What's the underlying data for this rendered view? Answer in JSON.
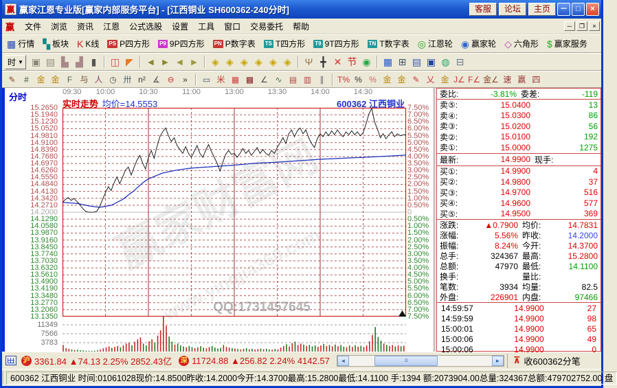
{
  "window": {
    "title": "赢家江恩专业版[赢家内部服务平台] - [江西铜业  SH600362-240分时]",
    "buttons": [
      "客服",
      "论坛",
      "主页"
    ],
    "controls": [
      "－",
      "□",
      "×"
    ],
    "logo": "赢"
  },
  "menu": {
    "logo": "赢",
    "items": [
      "文件",
      "浏览",
      "资讯",
      "江恩",
      "公式选股",
      "设置",
      "工具",
      "窗口",
      "交易委托",
      "帮助"
    ],
    "mdi_controls": [
      "─",
      "❐",
      "×"
    ]
  },
  "toolbar_main": [
    {
      "name": "quotes-button",
      "label": "行情",
      "glyph": "▦",
      "color": "#2244bb"
    },
    {
      "name": "sectors-button",
      "label": "板块",
      "glyph": "▚",
      "color": "#118888"
    },
    {
      "name": "kline-button",
      "label": "K线",
      "glyph": "K",
      "color": "#cc2222"
    },
    {
      "name": "p-square-button",
      "label": "P四方形",
      "badge": "PS",
      "badgecolor": "#cc3333"
    },
    {
      "name": "ninep-square-button",
      "label": "9P四方形",
      "badge": "P9",
      "badgecolor": "#cc33cc"
    },
    {
      "name": "p-table-button",
      "label": "P数字表",
      "badge": "PN",
      "badgecolor": "#cc3333"
    },
    {
      "name": "t-square-button",
      "label": "T四方形",
      "badge": "TS",
      "badgecolor": "#229999"
    },
    {
      "name": "ninet-square-button",
      "label": "9T四方形",
      "badge": "T9",
      "badgecolor": "#229999"
    },
    {
      "name": "t-table-button",
      "label": "T数字表",
      "badge": "TN",
      "badgecolor": "#229999"
    },
    {
      "name": "gann-wheel-button",
      "label": "江恩轮",
      "glyph": "◎",
      "color": "#22aa22"
    },
    {
      "name": "winner-wheel-button",
      "label": "赢家轮",
      "glyph": "◉",
      "color": "#3366cc"
    },
    {
      "name": "hexagon-button",
      "label": "六角形",
      "glyph": "◇",
      "color": "#aa44aa"
    },
    {
      "name": "winner-service-button",
      "label": "赢家服务",
      "glyph": "$",
      "color": "#22aa22"
    }
  ],
  "toolbar_tools": {
    "period_label": "时",
    "icons": [
      {
        "name": "capture-icon",
        "glyph": "▣",
        "color": "#8a8878"
      },
      {
        "name": "memo-icon",
        "glyph": "▤",
        "color": "#8a8878"
      },
      {
        "name": "stats-up-icon",
        "glyph": "▙",
        "color": "#aa8888"
      },
      {
        "name": "stats-down-icon",
        "glyph": "▟",
        "color": "#aa8888"
      },
      {
        "name": "candle-period-icon",
        "glyph": "▮",
        "color": "#555555"
      },
      {
        "name": "sep1",
        "sep": true
      },
      {
        "name": "ruler-window-icon",
        "glyph": "◫",
        "color": "#cc4444"
      },
      {
        "name": "flag-icon",
        "glyph": "◤",
        "color": "#ee7722"
      },
      {
        "name": "sep2",
        "sep": true
      },
      {
        "name": "goto-first-icon",
        "glyph": "◄",
        "color": "#888833"
      },
      {
        "name": "goto-last-icon",
        "glyph": "►",
        "color": "#888833"
      },
      {
        "name": "page-prev-icon",
        "glyph": "◄",
        "color": "#999944"
      },
      {
        "name": "page-next-icon",
        "glyph": "►",
        "color": "#999944"
      },
      {
        "name": "sep3",
        "sep": true
      },
      {
        "name": "gann-box-icon",
        "glyph": "◈",
        "color": "#c8a400"
      },
      {
        "name": "gann-fan-icon",
        "glyph": "◈",
        "color": "#c8a400"
      },
      {
        "name": "gann-grid-icon",
        "glyph": "◈",
        "color": "#c8a400"
      },
      {
        "name": "gann-angles-icon",
        "glyph": "◈",
        "color": "#c8a400"
      },
      {
        "name": "gann-cycle-icon",
        "glyph": "◈",
        "color": "#c8a400"
      },
      {
        "name": "gann-square-icon",
        "glyph": "◈",
        "color": "#c8a400"
      },
      {
        "name": "sep4",
        "sep": true
      },
      {
        "name": "hand-tool-icon",
        "glyph": "Ψ",
        "color": "#997755"
      },
      {
        "name": "crosshair-icon",
        "glyph": "╋",
        "color": "#333333"
      },
      {
        "name": "erase-icon",
        "glyph": "✕",
        "color": "#cc3333"
      },
      {
        "name": "festival-icon",
        "glyph": "节",
        "color": "#cc2222"
      },
      {
        "name": "ai-icon",
        "glyph": "◉",
        "color": "#22aa44"
      },
      {
        "name": "sep5",
        "sep": true
      },
      {
        "name": "calendar-icon",
        "glyph": "▦",
        "color": "#2255cc"
      },
      {
        "name": "calculator-icon",
        "glyph": "⊞",
        "color": "#445566"
      },
      {
        "name": "report-icon",
        "glyph": "▤",
        "color": "#3355aa"
      },
      {
        "name": "save-icon",
        "glyph": "▣",
        "color": "#2244aa"
      },
      {
        "name": "web-export-icon",
        "glyph": "◍",
        "color": "#22aa66"
      },
      {
        "name": "printer-icon",
        "glyph": "⊟",
        "color": "#667788"
      }
    ]
  },
  "toolbar_draw": [
    {
      "name": "quill-icon",
      "glyph": "✎",
      "color": "#884422"
    },
    {
      "name": "grid-tool-icon",
      "glyph": "#",
      "color": "#445544"
    },
    {
      "name": "gold-grid-icon",
      "glyph": "金",
      "color": "#b8860b"
    },
    {
      "name": "gold-grid2-icon",
      "glyph": "金",
      "color": "#b8860b"
    },
    {
      "name": "f-ruler-icon",
      "glyph": "F",
      "color": "#556655"
    },
    {
      "name": "hook-tool-icon",
      "glyph": "与",
      "color": "#775533"
    },
    {
      "name": "figure-tool-icon",
      "glyph": "人",
      "color": "#884466"
    },
    {
      "name": "clock-tool-icon",
      "glyph": "◷",
      "color": "#555555"
    },
    {
      "name": "lattice-icon",
      "glyph": "卅",
      "color": "#556677"
    },
    {
      "name": "square-n2-icon",
      "glyph": "n²",
      "color": "#333333"
    },
    {
      "name": "wing-tool-icon",
      "glyph": "∡",
      "color": "#555555"
    },
    {
      "name": "compass-tool-icon",
      "glyph": "⊖",
      "color": "#cc3333"
    },
    {
      "name": "more-tools-chevron",
      "glyph": "»",
      "color": "#333333"
    },
    {
      "name": "sepA",
      "sep": true
    },
    {
      "name": "region-select-icon",
      "glyph": "▭",
      "color": "#445566"
    },
    {
      "name": "ray-lines-icon",
      "glyph": "米",
      "color": "#cc3333"
    },
    {
      "name": "grid-fill-icon",
      "glyph": "▦",
      "color": "#cc4444"
    },
    {
      "name": "grid-dark-icon",
      "glyph": "▩",
      "color": "#882222"
    },
    {
      "name": "angle-lines-icon",
      "glyph": "∠",
      "color": "#444444"
    },
    {
      "name": "wave-tool-icon",
      "glyph": "∿",
      "color": "#447744"
    },
    {
      "name": "mesh-icon",
      "glyph": "▤",
      "color": "#bb4444"
    },
    {
      "name": "mesh2-icon",
      "glyph": "▥",
      "color": "#bb4444"
    },
    {
      "name": "slats-icon",
      "glyph": "∥",
      "color": "#666666"
    },
    {
      "name": "sepB",
      "sep": true
    },
    {
      "name": "percent-grid-icon",
      "glyph": "T%",
      "color": "#cc3333"
    },
    {
      "name": "percent-icon",
      "glyph": "%",
      "color": "#333333"
    },
    {
      "name": "pct-circle-icon",
      "glyph": "%",
      "color": "#cc6666"
    },
    {
      "name": "gold-circle-icon",
      "glyph": "金",
      "color": "#b8860b"
    },
    {
      "name": "gold-band-icon",
      "glyph": "金",
      "color": "#b8860b"
    },
    {
      "name": "marker-pen-icon",
      "glyph": "✎",
      "color": "#cc3333"
    },
    {
      "name": "fan-red-icon",
      "glyph": "乂",
      "color": "#cc3333"
    },
    {
      "name": "gold-fan-icon",
      "glyph": "金",
      "color": "#b8860b"
    },
    {
      "name": "j-line-icon",
      "glyph": "J∠",
      "color": "#cc3333"
    },
    {
      "name": "f-line-icon",
      "glyph": "F∠",
      "color": "#cc3333"
    },
    {
      "name": "gold-angle-icon",
      "glyph": "金∠",
      "color": "#884422"
    },
    {
      "name": "speed-line-icon",
      "glyph": "速",
      "color": "#993333"
    },
    {
      "name": "win-line-icon",
      "glyph": "赢",
      "color": "#993333"
    },
    {
      "name": "quad-line-icon",
      "glyph": "四",
      "color": "#993333"
    }
  ],
  "chart": {
    "mode_label": "分时",
    "header": {
      "series_label": "实时走势",
      "avg_label": "均价=14.5553",
      "stock": "600362 江西铜业"
    },
    "watermark": {
      "brand": "赢家财富网",
      "site": "www.yingjia360.com",
      "qq": "QQ:1731457645"
    }
  },
  "chart_data": {
    "type": "line",
    "title": "实时走势 (240分时)",
    "stock": "600362 江西铜业",
    "prev_close": 14.2,
    "x_minutes_total": 240,
    "time_labels": [
      "09:30",
      "10:00",
      "10:30",
      "11:00",
      "13:00",
      "13:30",
      "14:00",
      "14:30"
    ],
    "price_ticks": [
      "15.2650",
      "15.1940",
      "15.1230",
      "15.0520",
      "14.9810",
      "14.9100",
      "14.8390",
      "14.7680",
      "14.6970",
      "14.6260",
      "14.5550",
      "14.4840",
      "14.4130",
      "14.3420",
      "14.2710",
      "14.2000",
      "14.1290",
      "14.0580",
      "13.9870",
      "13.9160",
      "13.8450",
      "13.7740",
      "13.7030",
      "13.6320",
      "13.5610",
      "13.4900",
      "13.4190",
      "13.3480",
      "13.2770",
      "13.2060",
      "13.1350"
    ],
    "pct_ticks": [
      "7.50%",
      "7.00%",
      "6.50%",
      "6.00%",
      "5.50%",
      "5.00%",
      "4.50%",
      "4.00%",
      "3.50%",
      "3.00%",
      "2.50%",
      "2.00%",
      "1.50%",
      "1.00%",
      "0.50%",
      "0",
      "0.50%",
      "1.00%",
      "1.50%",
      "2.00%",
      "2.50%",
      "3.00%",
      "3.50%",
      "4.00%",
      "4.50%",
      "5.00%",
      "5.50%",
      "6.00%",
      "6.50%",
      "7.00%",
      "7.50%"
    ],
    "volume_ticks": [
      "11349",
      "7566",
      "3783"
    ],
    "volume_grid_step": 3783,
    "series": [
      {
        "name": "实时走势",
        "color": "#202020",
        "interval_min": 2,
        "values": [
          14.3,
          14.33,
          14.35,
          14.32,
          14.34,
          14.31,
          14.28,
          14.24,
          14.21,
          14.2,
          14.2,
          14.2,
          14.21,
          14.26,
          14.33,
          14.4,
          14.46,
          14.42,
          14.5,
          14.56,
          14.49,
          14.56,
          14.63,
          14.66,
          14.58,
          14.66,
          14.73,
          14.78,
          14.7,
          14.64,
          14.76,
          14.83,
          14.75,
          14.87,
          14.97,
          15.02,
          15.06,
          14.98,
          14.92,
          14.96,
          14.88,
          14.84,
          14.8,
          14.87,
          14.8,
          14.76,
          14.82,
          14.88,
          14.8,
          14.76,
          14.83,
          14.89,
          14.82,
          14.76,
          14.7,
          14.62,
          14.71,
          14.79,
          14.83,
          14.79,
          14.8,
          14.76,
          14.8,
          14.85,
          14.8,
          14.83,
          14.78,
          14.82,
          14.86,
          14.8,
          14.84,
          14.8,
          14.78,
          14.83,
          14.8,
          14.86,
          14.91,
          14.96,
          14.9,
          15.0,
          15.04,
          14.97,
          15.03,
          15.06,
          15.0,
          15.04,
          14.96,
          14.9,
          14.86,
          14.95,
          15.0,
          14.97,
          15.02,
          14.98,
          15.03,
          14.99,
          15.04,
          15.0,
          14.97,
          15.02,
          14.99,
          15.03,
          14.99,
          15.02,
          14.98,
          15.01,
          15.1,
          15.2,
          15.26,
          15.12,
          15.05,
          14.96,
          15.0,
          14.95,
          14.99,
          15.02,
          14.97,
          15.0,
          14.98,
          14.99
        ]
      },
      {
        "name": "均价",
        "color": "#2233bb",
        "anchors": [
          [
            0,
            14.3
          ],
          [
            10,
            14.29
          ],
          [
            20,
            14.26
          ],
          [
            26,
            14.25
          ],
          [
            34,
            14.27
          ],
          [
            42,
            14.33
          ],
          [
            50,
            14.42
          ],
          [
            56,
            14.5
          ],
          [
            60,
            14.54
          ],
          [
            70,
            14.6
          ],
          [
            80,
            14.63
          ],
          [
            90,
            14.65
          ],
          [
            100,
            14.66
          ],
          [
            110,
            14.67
          ],
          [
            120,
            14.68
          ],
          [
            135,
            14.7
          ],
          [
            150,
            14.71
          ],
          [
            165,
            14.725
          ],
          [
            180,
            14.74
          ],
          [
            195,
            14.75
          ],
          [
            210,
            14.76
          ],
          [
            225,
            14.77
          ],
          [
            240,
            14.783
          ]
        ]
      }
    ],
    "volume": [
      2800,
      1500,
      1200,
      900,
      700,
      800,
      600,
      500,
      400,
      350,
      300,
      400,
      600,
      900,
      1400,
      1800,
      2200,
      1600,
      2000,
      2400,
      1800,
      2600,
      3400,
      3800,
      2600,
      4200,
      5200,
      6000,
      3400,
      2600,
      4400,
      5200,
      3800,
      6800,
      9000,
      15000,
      11000,
      6400,
      4200,
      3000,
      3400,
      2600,
      2200,
      1800,
      2400,
      1900,
      1500,
      1800,
      2300,
      1700,
      1400,
      1900,
      2400,
      1700,
      1300,
      1600,
      2800,
      2000,
      1700,
      1500,
      1300,
      1100,
      900,
      1200,
      1500,
      1000,
      1200,
      900,
      1100,
      1300,
      1000,
      1200,
      900,
      800,
      1100,
      1000,
      1700,
      2400,
      3100,
      2200,
      3600,
      4200,
      2800,
      3400,
      3000,
      2400,
      2800,
      2200,
      2600,
      2000,
      2600,
      3200,
      2400,
      2800,
      2200,
      3000,
      2300,
      2800,
      2100,
      1900,
      2600,
      2000,
      2700,
      2100,
      2500,
      2000,
      2600,
      4400,
      7000,
      10400,
      6200,
      4600,
      3400,
      2800,
      2400,
      2800,
      2200,
      2600,
      2300,
      2500
    ]
  },
  "quote_panel": {
    "weibi": {
      "label": "委比:",
      "value": "-3.81%",
      "label2": "委差:",
      "value2": "-119"
    },
    "asks": [
      {
        "label": "卖⑤:",
        "price": "15.0400",
        "vol": "13"
      },
      {
        "label": "卖④:",
        "price": "15.0300",
        "vol": "86"
      },
      {
        "label": "卖③:",
        "price": "15.0200",
        "vol": "56"
      },
      {
        "label": "卖②:",
        "price": "15.0100",
        "vol": "192"
      },
      {
        "label": "卖①:",
        "price": "15.0000",
        "vol": "1275"
      }
    ],
    "latest": {
      "label": "最新:",
      "price": "14.9900",
      "label2": "现手:",
      "value2": ""
    },
    "bids": [
      {
        "label": "买①:",
        "price": "14.9900",
        "vol": "4"
      },
      {
        "label": "买②:",
        "price": "14.9800",
        "vol": "37"
      },
      {
        "label": "买③:",
        "price": "14.9700",
        "vol": "516"
      },
      {
        "label": "买④:",
        "price": "14.9600",
        "vol": "577"
      },
      {
        "label": "买⑤:",
        "price": "14.9500",
        "vol": "369"
      }
    ],
    "stats": [
      {
        "l1": "涨跌:",
        "v1": "▲0.7900",
        "c1": "v-red",
        "l2": "均价:",
        "v2": "14.7831",
        "c2": "v-red"
      },
      {
        "l1": "涨幅:",
        "v1": "5.56%",
        "c1": "v-red",
        "l2": "昨收:",
        "v2": "14.2000",
        "c2": "v-blue"
      },
      {
        "l1": "振幅:",
        "v1": "8.24%",
        "c1": "v-red",
        "l2": "今开:",
        "v2": "14.3700",
        "c2": "v-red"
      },
      {
        "l1": "总手:",
        "v1": "324367",
        "c1": "v-black",
        "l2": "最高:",
        "v2": "15.2800",
        "c2": "v-red"
      },
      {
        "l1": "总额:",
        "v1": "47970",
        "c1": "v-black",
        "l2": "最低:",
        "v2": "14.1100",
        "c2": "v-green"
      },
      {
        "l1": "换手:",
        "v1": "",
        "c1": "v-black",
        "l2": "量比:",
        "v2": "",
        "c2": "v-black"
      },
      {
        "l1": "笔数:",
        "v1": "3934",
        "c1": "v-black",
        "l2": "均量:",
        "v2": "82.5",
        "c2": "v-black"
      },
      {
        "l1": "外盘:",
        "v1": "226901",
        "c1": "v-red",
        "l2": "内盘:",
        "v2": "97466",
        "c2": "v-green"
      }
    ],
    "ticks": [
      {
        "time": "14:59:57",
        "price": "14.9900",
        "vol": "27"
      },
      {
        "time": "14:59:59",
        "price": "14.9900",
        "vol": "98"
      },
      {
        "time": "15:00:01",
        "price": "14.9900",
        "vol": "65"
      },
      {
        "time": "15:00:06",
        "price": "14.9900",
        "vol": "49"
      },
      {
        "time": "15:00:06",
        "price": "14.9900",
        "vol": "0"
      }
    ]
  },
  "index_bar": {
    "sh": {
      "badge": "沪",
      "index": "3361.84",
      "change": "▲74.13",
      "pct": "2.25%",
      "amount": "2852.43亿"
    },
    "sz": {
      "badge": "深",
      "index": "11724.88",
      "change": "▲256.82",
      "pct": "2.24%",
      "amount": "4142.57"
    },
    "feed_label": "收600362分笔"
  },
  "status_bar": {
    "text": "600362 江西铜业 时间:01061028现价:14.8500昨收:14.2000今开:14.3700最高:15.2800最低:14.1100 手:1394 额:2073904.00总量:324367总额:479702752.00 盘"
  }
}
